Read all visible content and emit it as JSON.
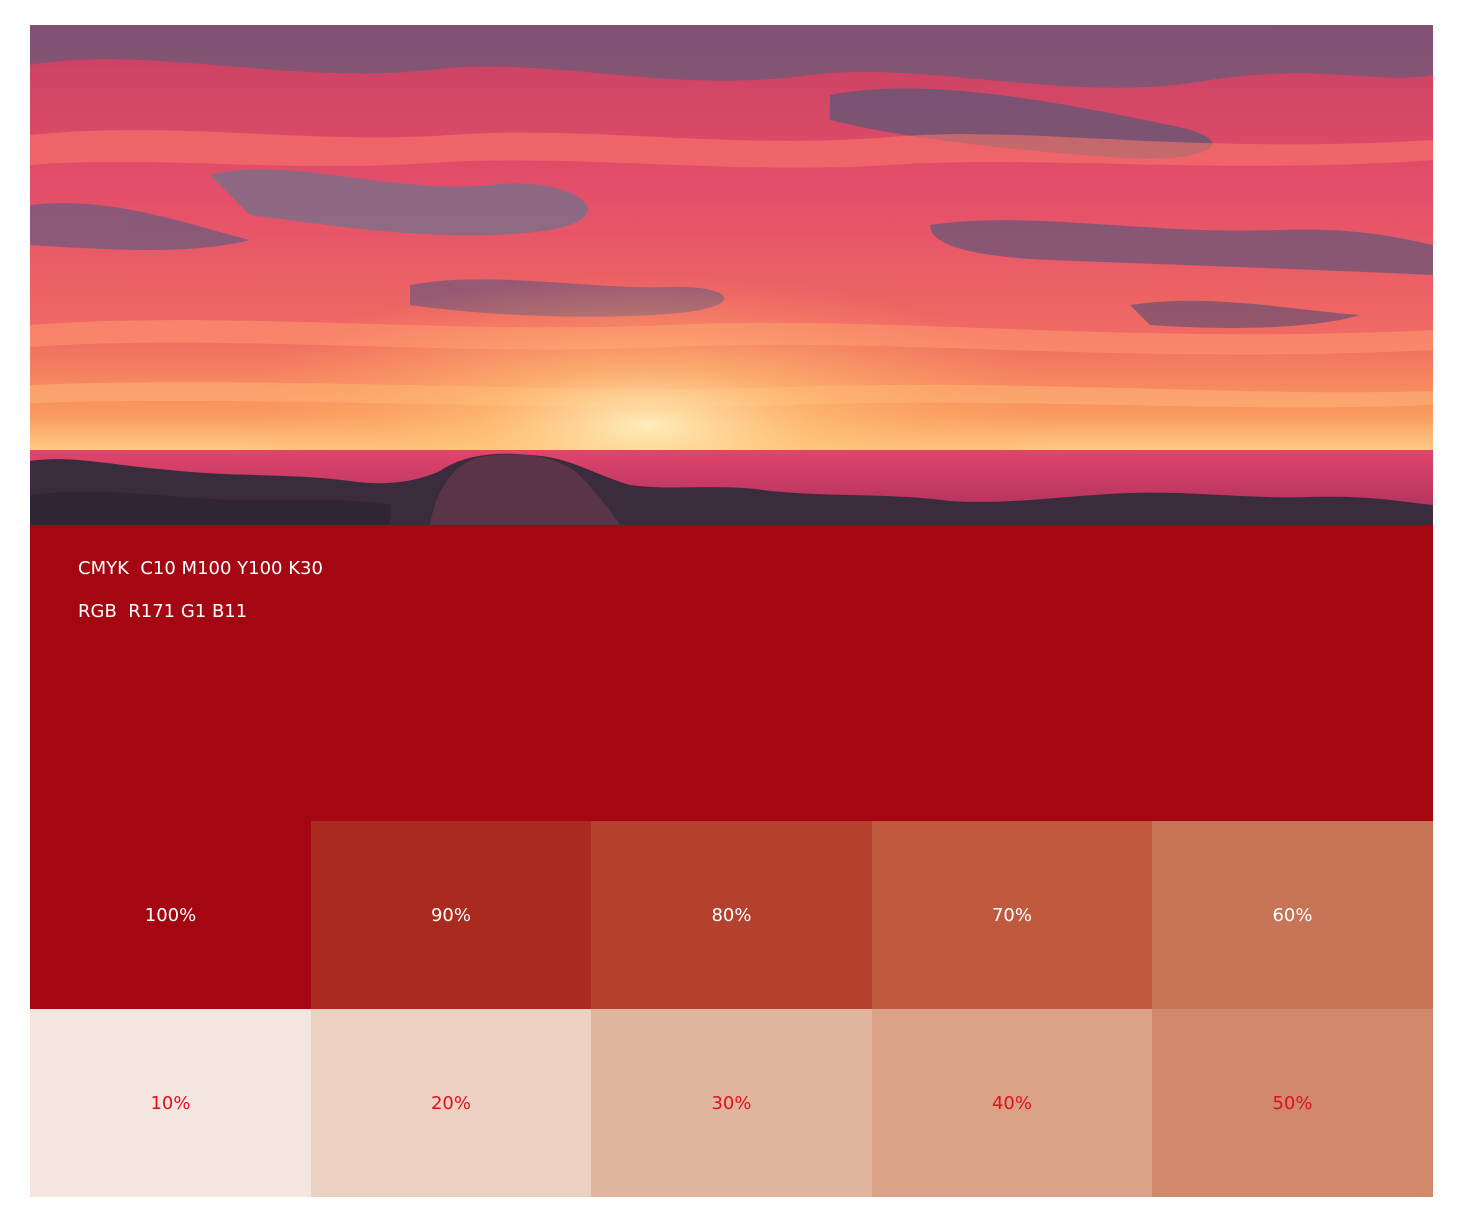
{
  "colors": {
    "primary": "#a50712",
    "label_light": "#ffffff",
    "label_accent": "#e2101c"
  },
  "photo": {
    "subject": "sunset-over-rocky-coast"
  },
  "specs": {
    "cmyk": "CMYK  C10 M100 Y100 K30",
    "rgb": "RGB  R171 G1 B11"
  },
  "tints": [
    {
      "label": "100%",
      "color": "#a50712",
      "text_color": "#ffffff"
    },
    {
      "label": "90%",
      "color": "#ab2a1f",
      "text_color": "#ffffff"
    },
    {
      "label": "80%",
      "color": "#b3412d",
      "text_color": "#ffffff"
    },
    {
      "label": "70%",
      "color": "#bf5a3f",
      "text_color": "#ffffff"
    },
    {
      "label": "60%",
      "color": "#c67455",
      "text_color": "#ffffff"
    },
    {
      "label": "10%",
      "color": "#f4e5de",
      "text_color": "#e2101c"
    },
    {
      "label": "20%",
      "color": "#ecd0c1",
      "text_color": "#e2101c"
    },
    {
      "label": "30%",
      "color": "#e2b59f",
      "text_color": "#e2101c"
    },
    {
      "label": "40%",
      "color": "#d9a185",
      "text_color": "#e2101c"
    },
    {
      "label": "50%",
      "color": "#d0896a",
      "text_color": "#e2101c"
    }
  ]
}
